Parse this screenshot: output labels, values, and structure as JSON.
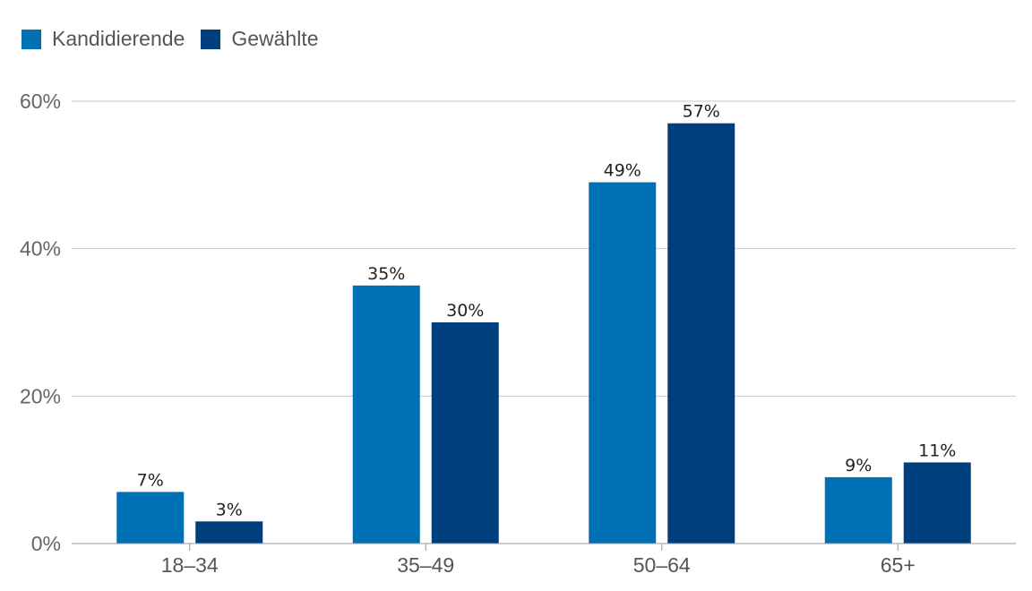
{
  "chart_data": {
    "type": "bar",
    "categories": [
      "18–34",
      "35–49",
      "50–64",
      "65+"
    ],
    "series": [
      {
        "name": "Kandidierende",
        "values": [
          7,
          35,
          49,
          9
        ],
        "labels": [
          "7%",
          "35%",
          "49%",
          "9%"
        ],
        "color": "#0070b4"
      },
      {
        "name": "Gewählte",
        "values": [
          3,
          30,
          57,
          11
        ],
        "labels": [
          "3%",
          "30%",
          "57%",
          "11%"
        ],
        "color": "#003f7d"
      }
    ],
    "y_ticks": [
      {
        "value": 0,
        "label": "0%"
      },
      {
        "value": 20,
        "label": "20%"
      },
      {
        "value": 40,
        "label": "40%"
      },
      {
        "value": 60,
        "label": "60%"
      }
    ],
    "ylim": [
      0,
      60
    ],
    "grid": true,
    "legend_position": "top-left"
  }
}
